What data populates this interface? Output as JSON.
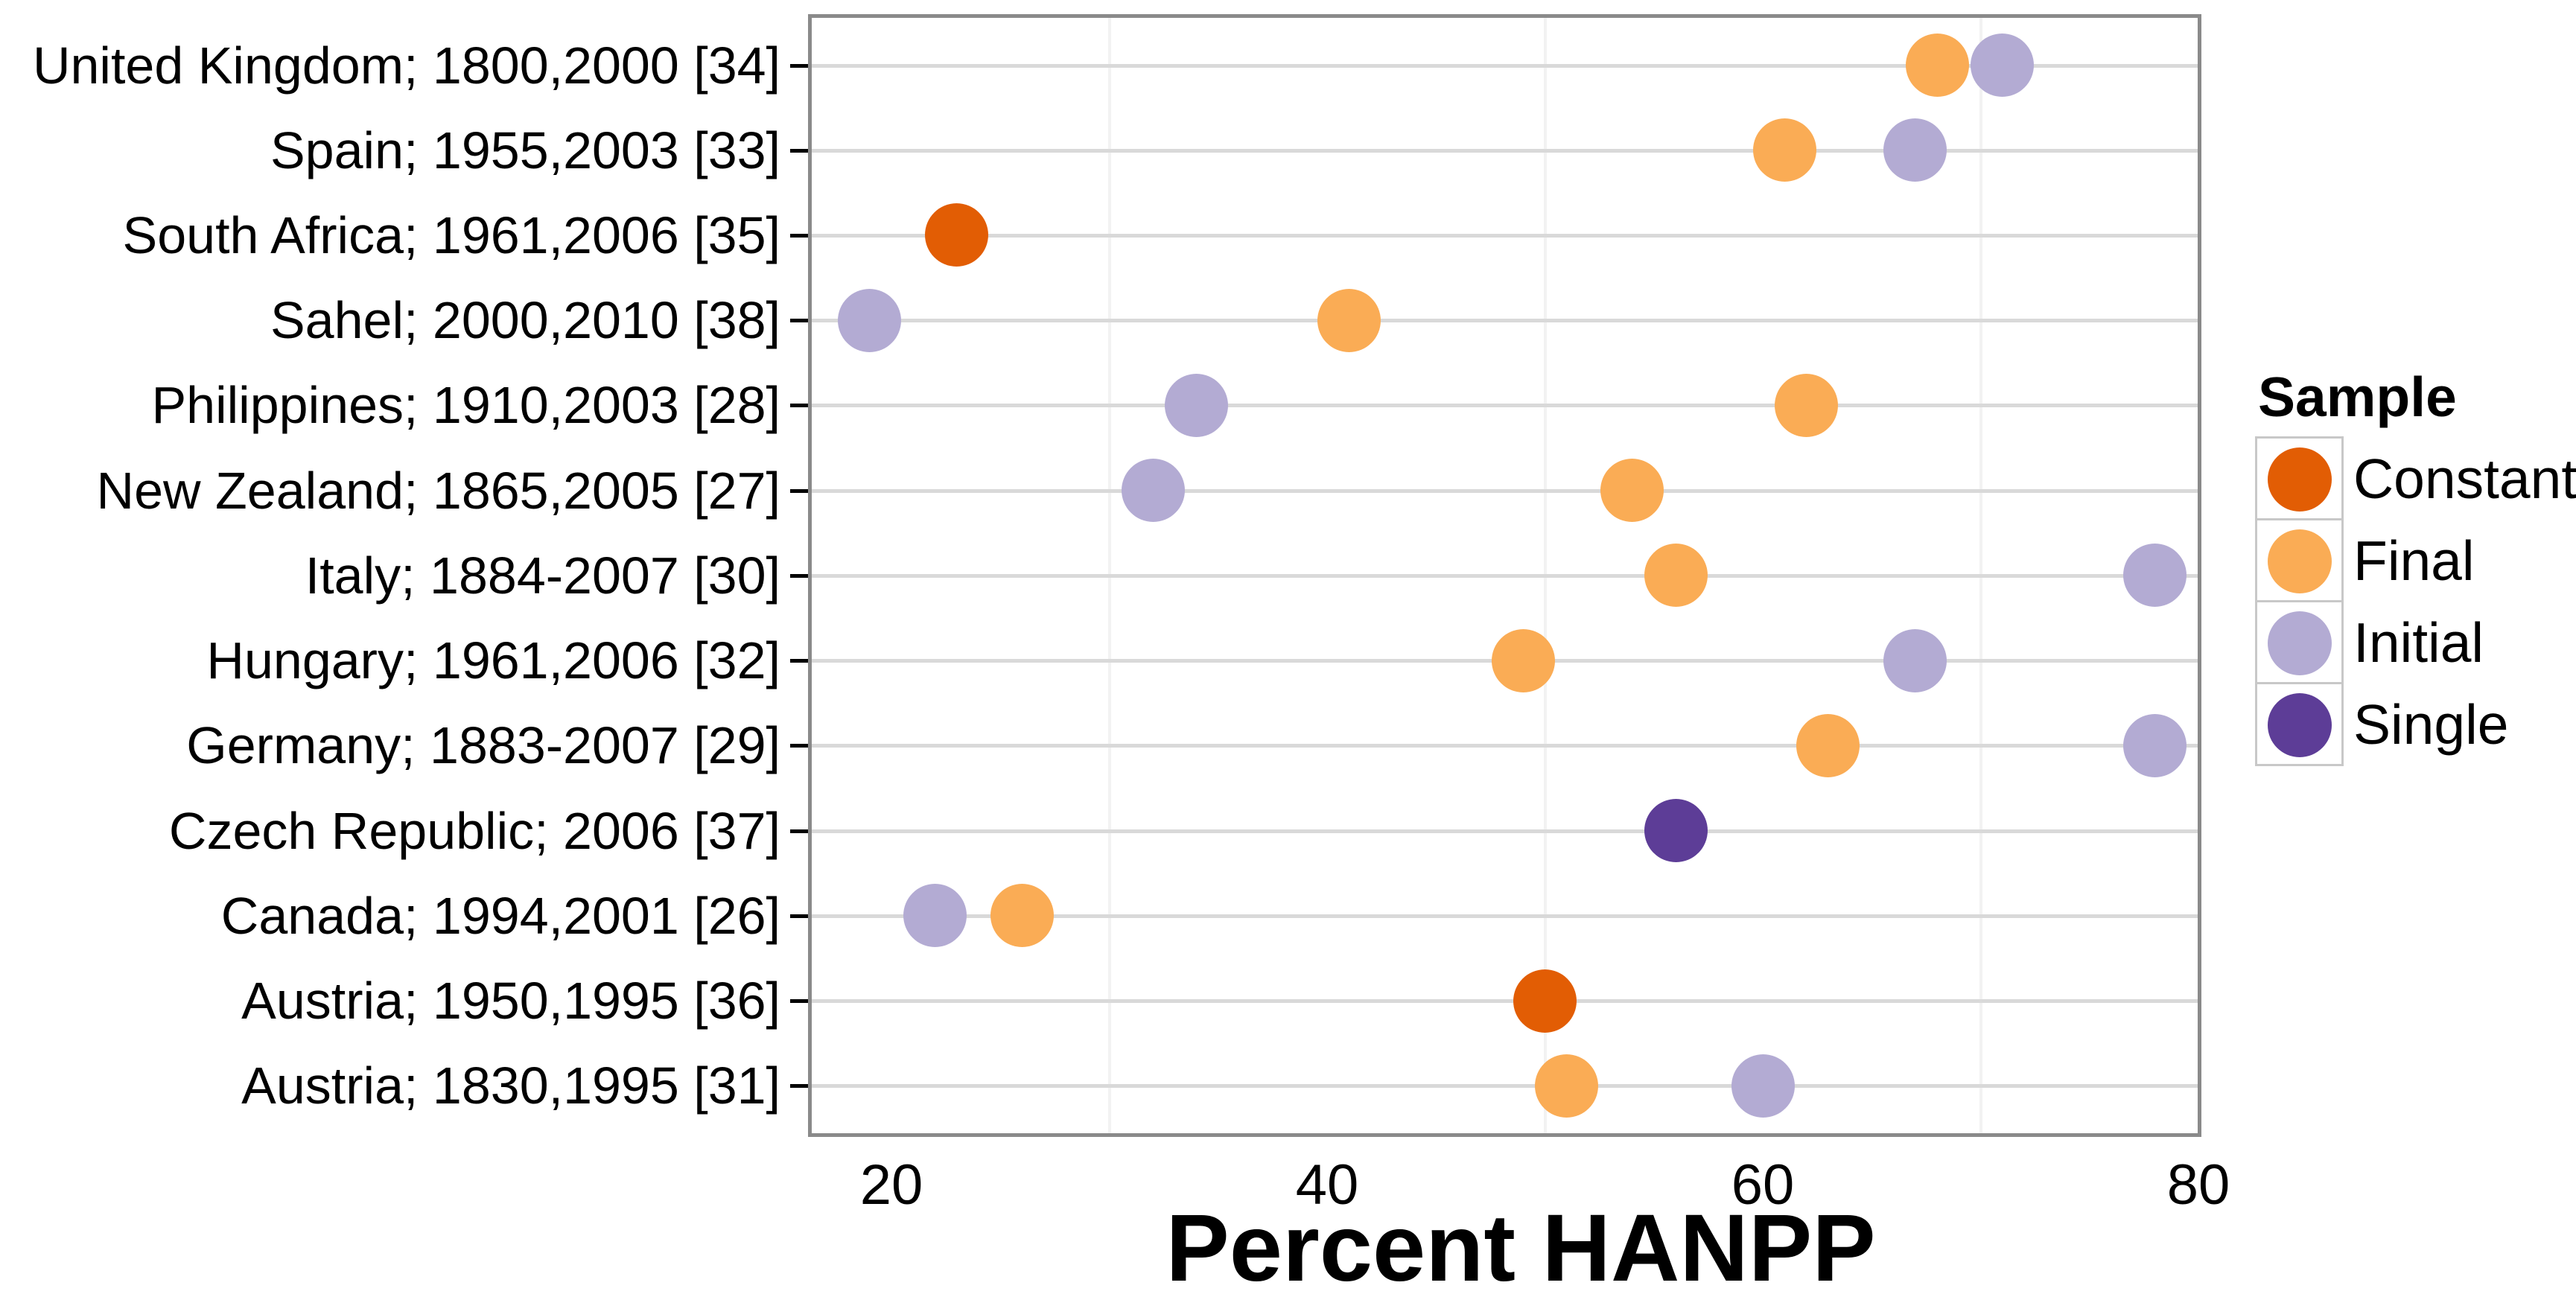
{
  "chart_data": {
    "type": "scatter",
    "title": "",
    "xlabel": "Percent HANPP",
    "x_ticks": [
      20,
      40,
      60,
      80
    ],
    "x_minor_gridlines": [
      30,
      50,
      70
    ],
    "xlim": [
      16.2,
      80.2
    ],
    "grid": "horizontal-major and vertical-minor",
    "legend": {
      "title": "Sample",
      "position": "right",
      "entries": [
        {
          "label": "Constant",
          "color": "#e25d04"
        },
        {
          "label": "Final",
          "color": "#faac55"
        },
        {
          "label": "Initial",
          "color": "#b3abd3"
        },
        {
          "label": "Single",
          "color": "#5d3d97"
        }
      ]
    },
    "sample_colors": {
      "Constant": "#e25d04",
      "Final": "#faac55",
      "Initial": "#b3abd3",
      "Single": "#5d3d97"
    },
    "rows": [
      {
        "label": "United Kingdom; 1800,2000 [34]",
        "points": [
          {
            "sample": "Final",
            "value": 68
          },
          {
            "sample": "Initial",
            "value": 71
          }
        ]
      },
      {
        "label": "Spain; 1955,2003 [33]",
        "points": [
          {
            "sample": "Final",
            "value": 61
          },
          {
            "sample": "Initial",
            "value": 67
          }
        ]
      },
      {
        "label": "South Africa; 1961,2006 [35]",
        "points": [
          {
            "sample": "Constant",
            "value": 23
          }
        ]
      },
      {
        "label": "Sahel; 2000,2010 [38]",
        "points": [
          {
            "sample": "Initial",
            "value": 19
          },
          {
            "sample": "Final",
            "value": 41
          }
        ]
      },
      {
        "label": "Philippines; 1910,2003 [28]",
        "points": [
          {
            "sample": "Initial",
            "value": 34
          },
          {
            "sample": "Final",
            "value": 62
          }
        ]
      },
      {
        "label": "New Zealand; 1865,2005 [27]",
        "points": [
          {
            "sample": "Initial",
            "value": 32
          },
          {
            "sample": "Final",
            "value": 54
          }
        ]
      },
      {
        "label": "Italy; 1884-2007 [30]",
        "points": [
          {
            "sample": "Final",
            "value": 56
          },
          {
            "sample": "Initial",
            "value": 78
          }
        ]
      },
      {
        "label": "Hungary; 1961,2006 [32]",
        "points": [
          {
            "sample": "Final",
            "value": 49
          },
          {
            "sample": "Initial",
            "value": 67
          }
        ]
      },
      {
        "label": "Germany; 1883-2007 [29]",
        "points": [
          {
            "sample": "Final",
            "value": 63
          },
          {
            "sample": "Initial",
            "value": 78
          }
        ]
      },
      {
        "label": "Czech Republic; 2006 [37]",
        "points": [
          {
            "sample": "Single",
            "value": 56
          }
        ]
      },
      {
        "label": "Canada; 1994,2001 [26]",
        "points": [
          {
            "sample": "Initial",
            "value": 22
          },
          {
            "sample": "Final",
            "value": 26
          }
        ]
      },
      {
        "label": "Austria; 1950,1995 [36]",
        "points": [
          {
            "sample": "Constant",
            "value": 50
          }
        ]
      },
      {
        "label": "Austria; 1830,1995 [31]",
        "points": [
          {
            "sample": "Final",
            "value": 51
          },
          {
            "sample": "Initial",
            "value": 60
          }
        ]
      }
    ]
  }
}
